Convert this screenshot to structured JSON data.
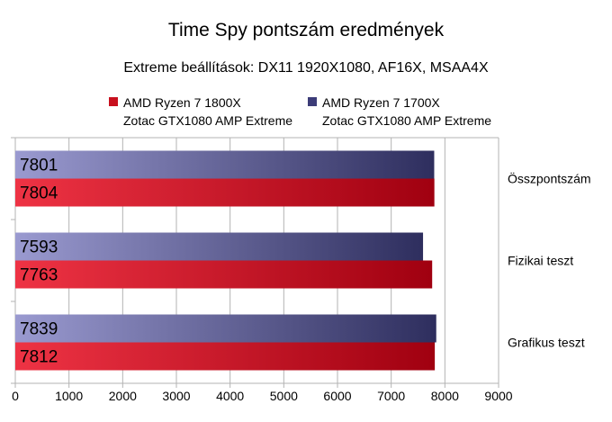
{
  "chart_data": {
    "type": "bar",
    "orientation": "horizontal",
    "title": "Time Spy pontszám eredmények",
    "subtitle": "Extreme beállítások: DX11 1920X1080, AF16X, MSAA4X",
    "categories": [
      "Összpontszám",
      "Fizikai teszt",
      "Grafikus teszt"
    ],
    "series": [
      {
        "name_line1": "AMD Ryzen 7 1700X",
        "name_line2": "Zotac GTX1080 AMP Extreme",
        "values": [
          7801,
          7593,
          7839
        ],
        "gradient": [
          "#9a9ad0",
          "#2e2e5e"
        ]
      },
      {
        "name_line1": "AMD Ryzen 7 1800X",
        "name_line2": "Zotac GTX1080 AMP Extreme",
        "values": [
          7804,
          7763,
          7812
        ],
        "gradient": [
          "#ee3344",
          "#a00010"
        ]
      }
    ],
    "xlim": [
      0,
      9000
    ],
    "xticks": [
      "0",
      "1000",
      "2000",
      "3000",
      "4000",
      "5000",
      "6000",
      "7000",
      "8000",
      "9000"
    ],
    "grid": true,
    "legend": "top"
  }
}
